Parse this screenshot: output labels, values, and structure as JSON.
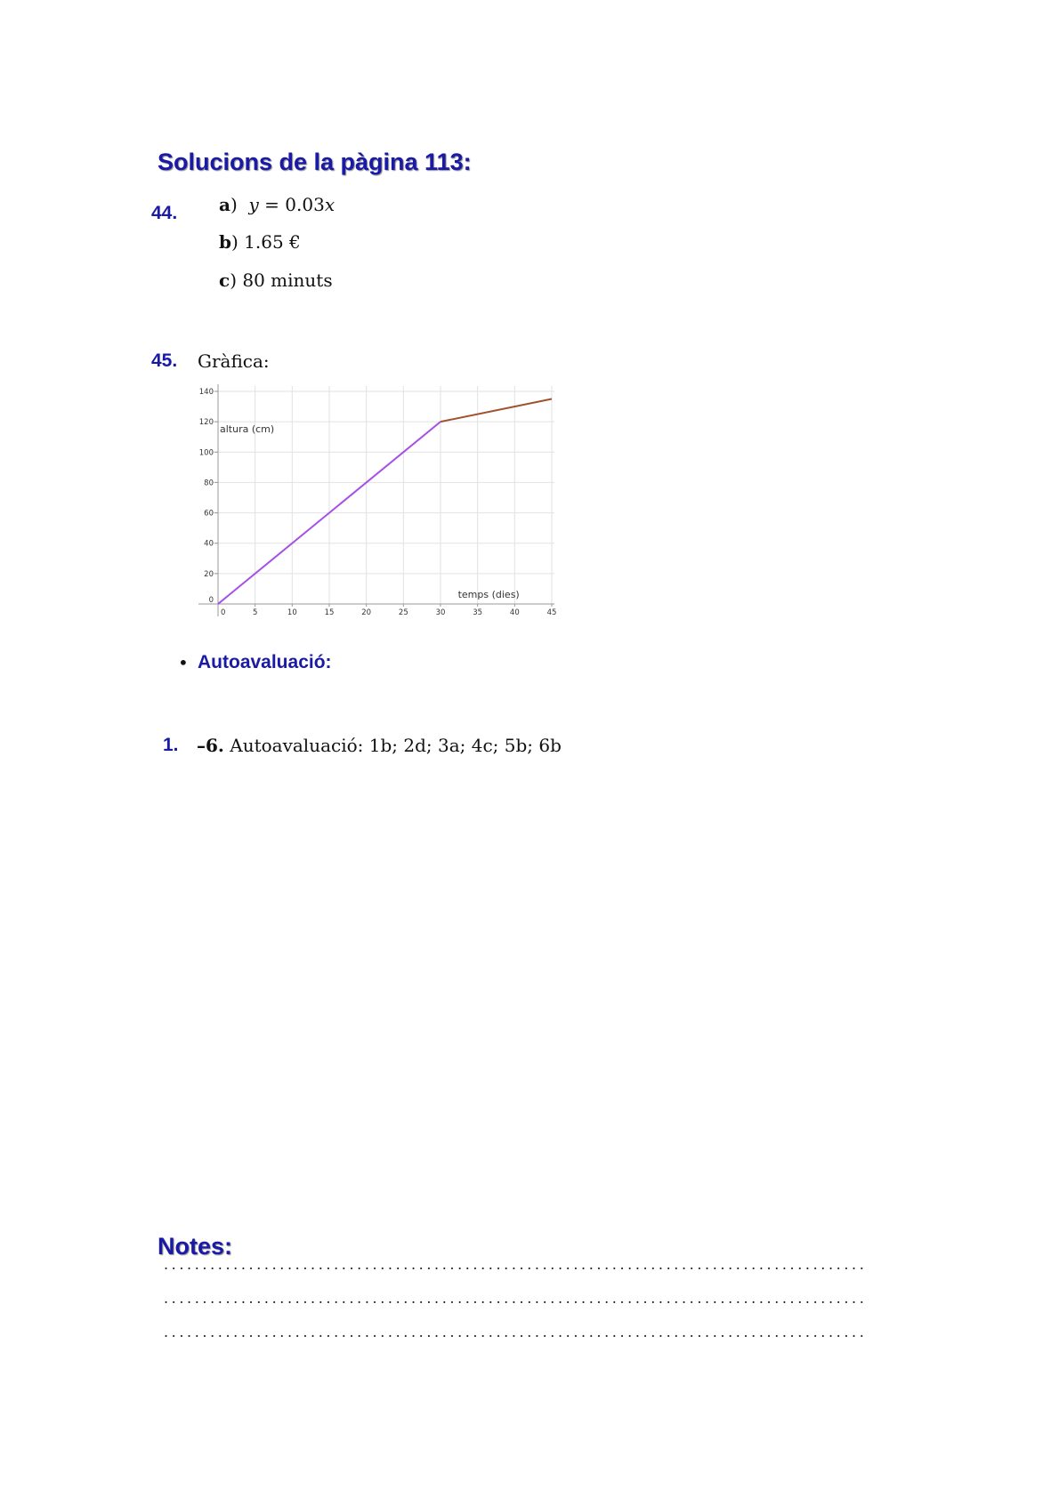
{
  "section_title": "Solucions de la pàgina 113:",
  "ex44": {
    "number": "44.",
    "items": [
      {
        "label": "a",
        "close": ")",
        "prefix": "",
        "var_y": "y",
        "eq": " = 0.03",
        "var_x": "x"
      },
      {
        "label": "b",
        "close": ")",
        "text": "1.65 €"
      },
      {
        "label": "c",
        "close": ")",
        "text": "80 minuts"
      }
    ]
  },
  "ex45": {
    "number": "45.",
    "text": "Gràfica:"
  },
  "chart_data": {
    "type": "line",
    "xlabel": "temps (dies)",
    "ylabel": "altura (cm)",
    "xlim": [
      0,
      45
    ],
    "ylim": [
      0,
      140
    ],
    "x_ticks": [
      "0",
      "5",
      "10",
      "15",
      "20",
      "25",
      "30",
      "35",
      "40",
      "45"
    ],
    "y_ticks": [
      "0",
      "20",
      "40",
      "60",
      "80",
      "100",
      "120",
      "140"
    ],
    "grid": true,
    "series": [
      {
        "x": [
          0,
          30
        ],
        "y": [
          0,
          120
        ],
        "color": "#a64ee6"
      },
      {
        "x": [
          30,
          45
        ],
        "y": [
          120,
          135
        ],
        "color": "#a0522d"
      }
    ]
  },
  "autoavaluacio": {
    "bullet": "•",
    "title": "Autoavaluació:"
  },
  "ex1": {
    "number": "1.",
    "range": "–6.",
    "text": "Autoavaluació: 1b; 2d; 3a; 4c; 5b; 6b"
  },
  "notes": {
    "title": "Notes:",
    "lines": [
      "...........................................................................................",
      "...........................................................................................",
      "..........................................................................................."
    ]
  }
}
